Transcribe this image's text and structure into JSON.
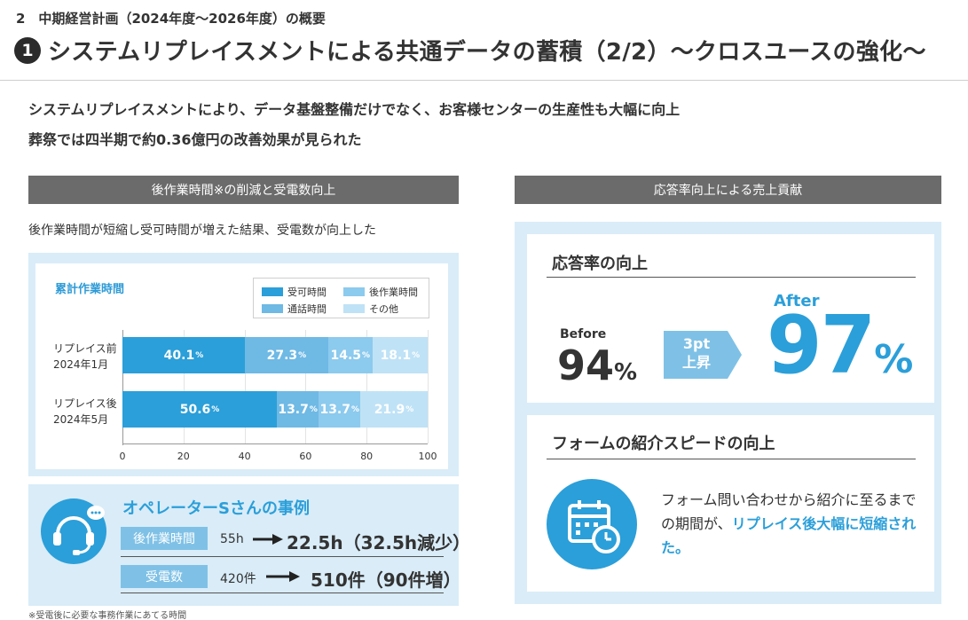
{
  "header": {
    "section_label": "2　中期経営計画（2024年度～2026年度）の概要",
    "title_number": "1",
    "title": "システムリプレイスメントによる共通データの蓄積（2/2）～クロスユースの強化～"
  },
  "summary": {
    "line1": "システムリプレイスメントにより、データ基盤整備だけでなく、お客様センターの生産性も大幅に向上",
    "line2": "葬祭では四半期で約0.36億円の改善効果が見られた"
  },
  "left": {
    "header": "後作業時間※の削減と受電数向上",
    "description": "後作業時間が短縮し受可時間が増えた結果、受電数が向上した",
    "footnote": "※受電後に必要な事務作業にあてる時間"
  },
  "chart_data": {
    "type": "bar",
    "orientation": "horizontal",
    "stacked": true,
    "title": "累計作業時間",
    "categories": [
      "リプレイス前",
      "リプレイス後"
    ],
    "category_sublabels": [
      "2024年1月",
      "2024年5月"
    ],
    "series": [
      {
        "name": "受可時間",
        "values": [
          40.1,
          50.6
        ],
        "color": "#2b9fd9"
      },
      {
        "name": "通話時間",
        "values": [
          27.3,
          13.7
        ],
        "color": "#6fb9e5"
      },
      {
        "name": "後作業時間",
        "values": [
          14.5,
          13.7
        ],
        "color": "#8ccaee"
      },
      {
        "name": "その他",
        "values": [
          18.1,
          21.9
        ],
        "color": "#bfe2f6"
      }
    ],
    "legend": [
      "受可時間",
      "後作業時間",
      "通話時間",
      "その他"
    ],
    "xlim": [
      0,
      100
    ],
    "x_ticks": [
      "0",
      "20",
      "40",
      "60",
      "80",
      "100"
    ],
    "value_suffix": "%",
    "legend_position": "top-right"
  },
  "case": {
    "title": "オペレーターSさんの事例",
    "rows": [
      {
        "label": "後作業時間",
        "before": "55h",
        "after": "22.5h（32.5h減少）"
      },
      {
        "label": "受電数",
        "before": "420件",
        "after": "510件（90件増）"
      }
    ]
  },
  "right": {
    "header": "応答率向上による売上貢献",
    "response": {
      "title": "応答率の向上",
      "before_label": "Before",
      "before_value": "94",
      "before_unit": "%",
      "arrow_line1": "3pt",
      "arrow_line2": "上昇",
      "after_label": "After",
      "after_value": "97",
      "after_unit": "%"
    },
    "form": {
      "title": "フォームの紹介スピードの向上",
      "desc_part1": "フォーム問い合わせから紹介に至るまでの期間が、",
      "desc_highlight": "リプレイス後大幅に短縮された。"
    }
  },
  "colors": {
    "accent": "#2b9fd9",
    "panel_bg": "#d9ecf8",
    "header_bg": "#6b6b6b"
  },
  "icons": {
    "operator": "headset-operator-icon",
    "calendar": "calendar-clock-icon",
    "arrow": "right-arrow-icon"
  }
}
